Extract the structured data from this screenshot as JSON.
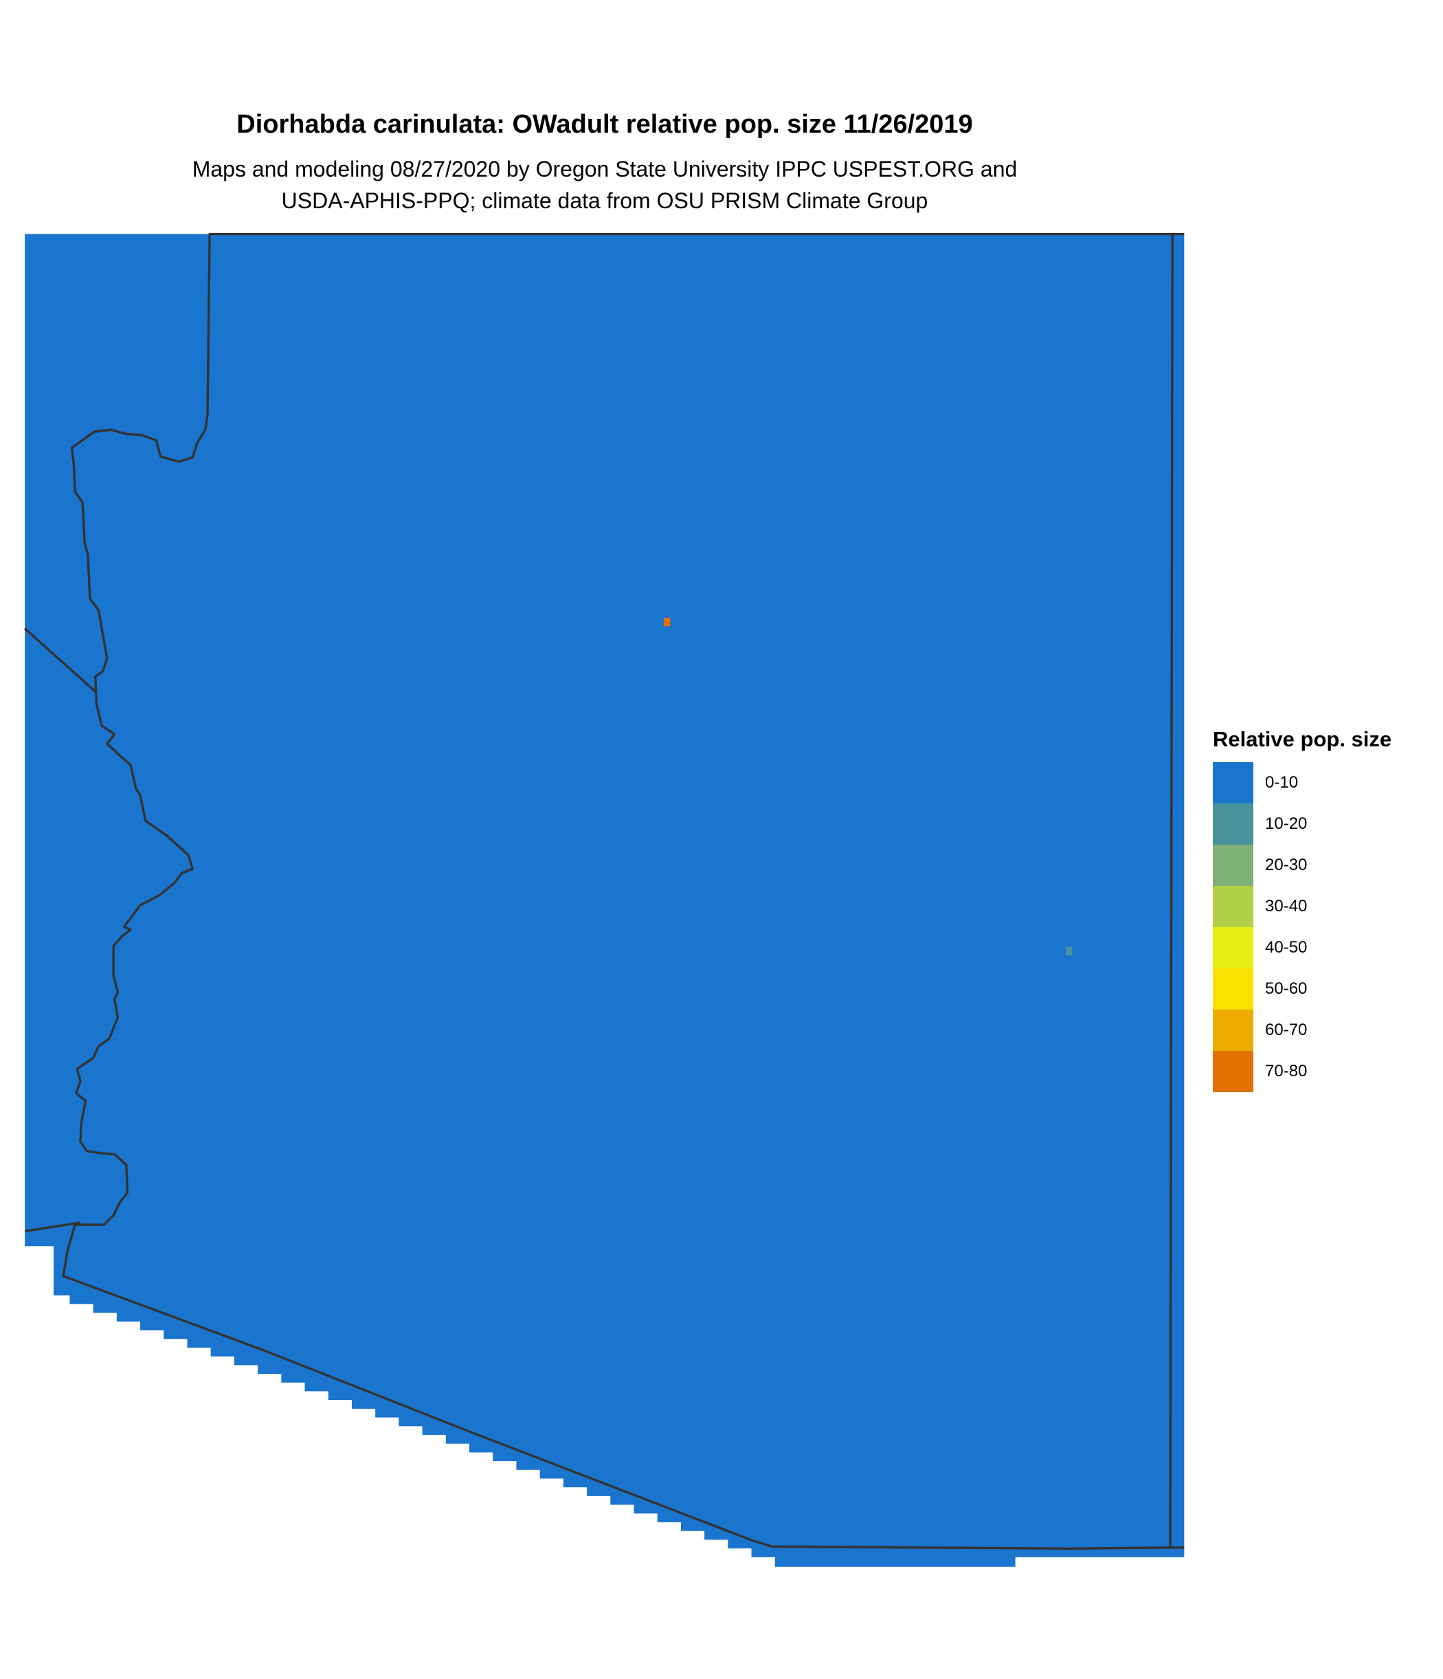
{
  "title": "Diorhabda carinulata: OWadult relative pop. size 11/26/2019",
  "subtitle_lines": [
    "Maps and modeling 08/27/2020 by Oregon State University IPPC USPEST.ORG and",
    "USDA-APHIS-PPQ; climate data from OSU PRISM Climate Group"
  ],
  "map": {
    "region": "Arizona",
    "background_class": "0-10",
    "hotspots": [
      {
        "class": "70-80",
        "location": "north-central"
      },
      {
        "class": "10-20",
        "location": "east"
      }
    ],
    "boundary_color": "#333333"
  },
  "legend": {
    "title": "Relative pop. size",
    "placement": "right",
    "items": [
      {
        "label": "0-10",
        "color": "#1a75cf"
      },
      {
        "label": "10-20",
        "color": "#4a929b"
      },
      {
        "label": "20-30",
        "color": "#7fb075"
      },
      {
        "label": "30-40",
        "color": "#b2d045"
      },
      {
        "label": "40-50",
        "color": "#e6ef14"
      },
      {
        "label": "50-60",
        "color": "#f9e100"
      },
      {
        "label": "60-70",
        "color": "#eeab00"
      },
      {
        "label": "70-80",
        "color": "#e37100"
      }
    ]
  }
}
